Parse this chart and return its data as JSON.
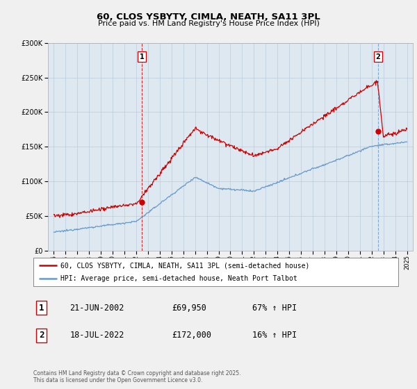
{
  "title1": "60, CLOS YSBYTY, CIMLA, NEATH, SA11 3PL",
  "title2": "Price paid vs. HM Land Registry's House Price Index (HPI)",
  "purchase1": {
    "date": "21-JUN-2002",
    "price": 69950,
    "pct": "67% ↑ HPI",
    "x": 2002.47
  },
  "purchase2": {
    "date": "18-JUL-2022",
    "price": 172000,
    "pct": "16% ↑ HPI",
    "x": 2022.54
  },
  "legend_line1": "60, CLOS YSBYTY, CIMLA, NEATH, SA11 3PL (semi-detached house)",
  "legend_line2": "HPI: Average price, semi-detached house, Neath Port Talbot",
  "footer1": "Contains HM Land Registry data © Crown copyright and database right 2025.",
  "footer2": "This data is licensed under the Open Government Licence v3.0.",
  "red_color": "#cc0000",
  "blue_color": "#6699cc",
  "plot_bg": "#dde8f0",
  "bg_color": "#f0f0f0",
  "grid_color": "#bbccdd",
  "ylim": [
    0,
    300000
  ],
  "xlim": [
    1994.5,
    2025.5
  ]
}
